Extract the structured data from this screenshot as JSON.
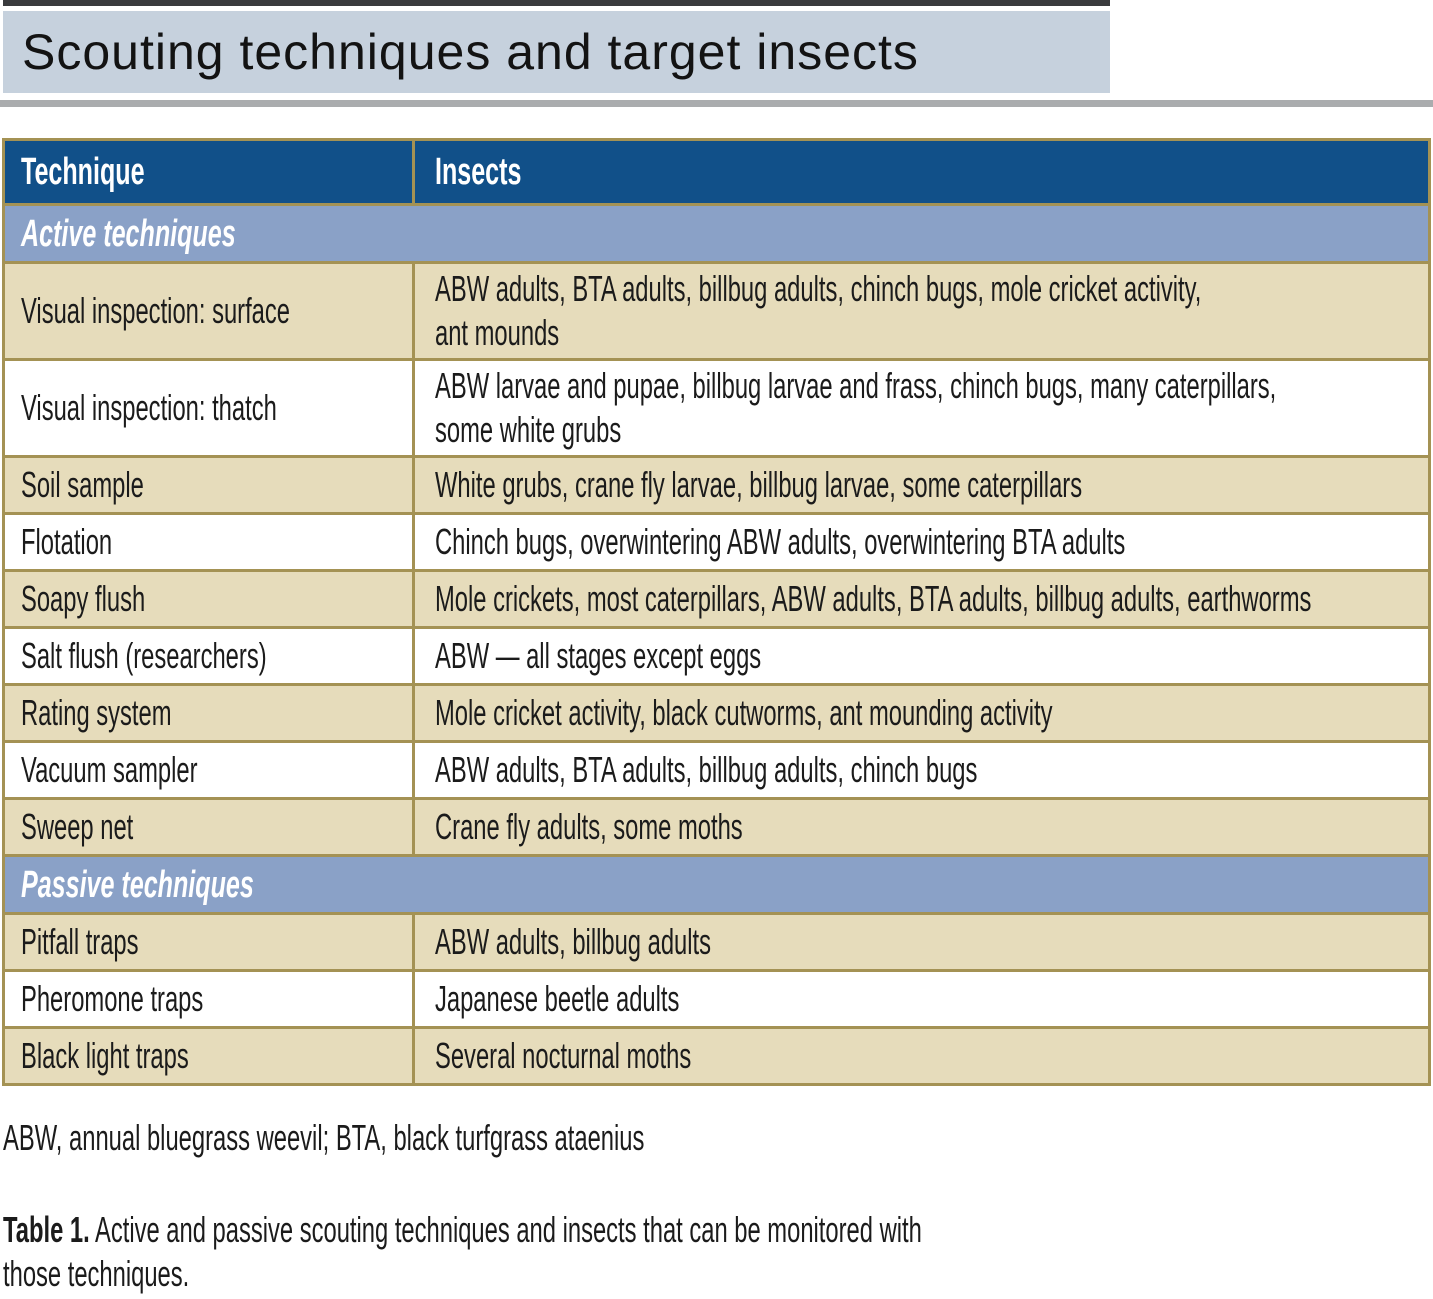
{
  "title": "Scouting techniques and target insects",
  "table": {
    "columns": [
      "Technique",
      "Insects"
    ],
    "sections": [
      {
        "label": "Active techniques",
        "rows": [
          {
            "technique": "Visual inspection: surface",
            "insects": "ABW adults, BTA adults, billbug adults, chinch bugs, mole cricket activity,\nant mounds"
          },
          {
            "technique": "Visual inspection: thatch",
            "insects": "ABW larvae and pupae, billbug larvae and frass, chinch bugs, many caterpillars,\nsome white grubs"
          },
          {
            "technique": "Soil sample",
            "insects": "White grubs, crane fly larvae, billbug larvae, some caterpillars"
          },
          {
            "technique": "Flotation",
            "insects": "Chinch bugs, overwintering ABW adults, overwintering BTA adults"
          },
          {
            "technique": "Soapy flush",
            "insects": "Mole crickets, most caterpillars, ABW adults, BTA adults, billbug adults, earthworms"
          },
          {
            "technique": "Salt flush (researchers)",
            "insects": "ABW — all stages except eggs"
          },
          {
            "technique": "Rating system",
            "insects": "Mole cricket activity, black cutworms, ant mounding activity"
          },
          {
            "technique": "Vacuum sampler",
            "insects": "ABW adults, BTA adults, billbug adults, chinch bugs"
          },
          {
            "technique": "Sweep net",
            "insects": "Crane fly adults, some moths"
          }
        ]
      },
      {
        "label": "Passive techniques",
        "rows": [
          {
            "technique": "Pitfall traps",
            "insects": "ABW adults, billbug adults"
          },
          {
            "technique": "Pheromone traps",
            "insects": "Japanese beetle adults"
          },
          {
            "technique": "Black light traps",
            "insects": "Several nocturnal moths"
          }
        ]
      }
    ]
  },
  "footnote": "ABW, annual bluegrass weevil; BTA, black turfgrass ataenius",
  "caption": {
    "label": "Table 1.",
    "text": "Active and passive scouting techniques and insects that can be monitored with those techniques."
  },
  "colors": {
    "navy": "#115089",
    "section_blue": "#8aa1c7",
    "row_tan": "#e6dcbb",
    "gold": "#a49254",
    "title_bg": "#c6d1dd",
    "top_bar": "#3a3b3d",
    "gray_bar": "#aaacae",
    "text": "#1b1b1b"
  }
}
